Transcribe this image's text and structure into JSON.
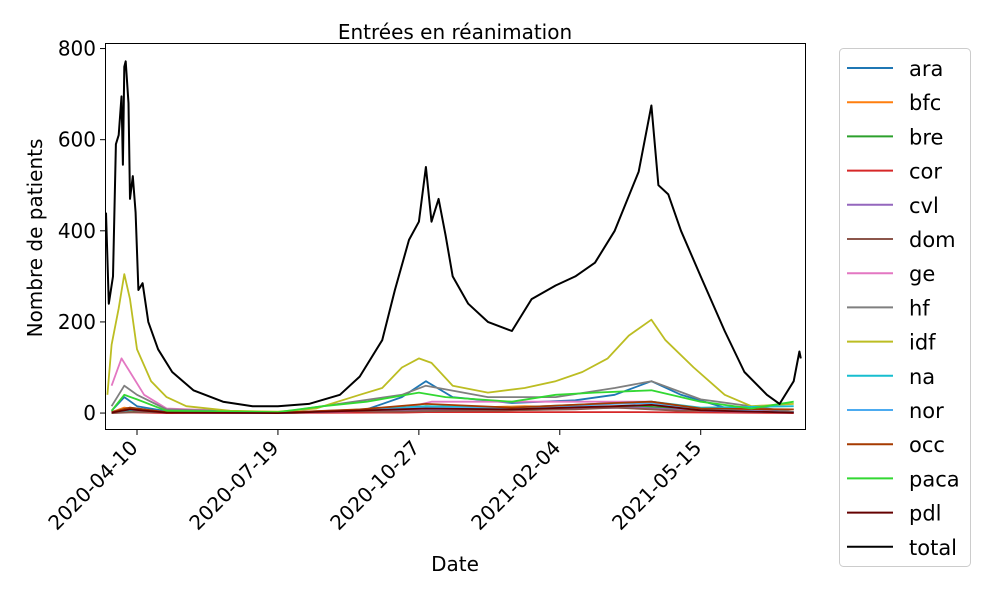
{
  "chart_data": {
    "type": "line",
    "title": "Entrées en réanimation",
    "xlabel": "Date",
    "ylabel": "Nombre de patients",
    "xlim": [
      "2020-03-19",
      "2021-07-28"
    ],
    "ylim": [
      -35,
      810
    ],
    "x_ticks": [
      "2020-04-10",
      "2020-07-19",
      "2020-10-27",
      "2021-02-04",
      "2021-05-15"
    ],
    "y_ticks": [
      0,
      200,
      400,
      600,
      800
    ],
    "grid": false,
    "legend_position": "outside-right",
    "series": [
      {
        "name": "ara",
        "color": "#1f77b4",
        "points": [
          [
            "2020-03-23",
            5
          ],
          [
            "2020-04-01",
            35
          ],
          [
            "2020-04-10",
            15
          ],
          [
            "2020-05-01",
            4
          ],
          [
            "2020-07-19",
            1
          ],
          [
            "2020-09-20",
            8
          ],
          [
            "2020-10-15",
            35
          ],
          [
            "2020-11-01",
            70
          ],
          [
            "2020-11-20",
            35
          ],
          [
            "2021-01-01",
            22
          ],
          [
            "2021-02-15",
            28
          ],
          [
            "2021-03-15",
            40
          ],
          [
            "2021-04-10",
            70
          ],
          [
            "2021-05-01",
            40
          ],
          [
            "2021-06-01",
            12
          ],
          [
            "2021-07-20",
            2
          ]
        ]
      },
      {
        "name": "bfc",
        "color": "#ff7f0e",
        "points": [
          [
            "2020-03-23",
            2
          ],
          [
            "2020-04-01",
            12
          ],
          [
            "2020-04-10",
            8
          ],
          [
            "2020-05-01",
            2
          ],
          [
            "2020-07-19",
            0
          ],
          [
            "2020-10-01",
            3
          ],
          [
            "2020-11-01",
            15
          ],
          [
            "2020-12-01",
            12
          ],
          [
            "2021-01-10",
            15
          ],
          [
            "2021-03-01",
            12
          ],
          [
            "2021-04-10",
            18
          ],
          [
            "2021-05-15",
            8
          ],
          [
            "2021-07-20",
            1
          ]
        ]
      },
      {
        "name": "bre",
        "color": "#2ca02c",
        "points": [
          [
            "2020-03-23",
            1
          ],
          [
            "2020-04-05",
            6
          ],
          [
            "2020-05-01",
            1
          ],
          [
            "2020-07-19",
            0
          ],
          [
            "2020-10-15",
            5
          ],
          [
            "2020-11-01",
            8
          ],
          [
            "2020-12-15",
            5
          ],
          [
            "2021-02-01",
            8
          ],
          [
            "2021-04-01",
            15
          ],
          [
            "2021-05-01",
            10
          ],
          [
            "2021-07-20",
            1
          ]
        ]
      },
      {
        "name": "cor",
        "color": "#d62728",
        "points": [
          [
            "2020-03-23",
            0
          ],
          [
            "2020-04-01",
            2
          ],
          [
            "2020-05-01",
            0
          ],
          [
            "2020-10-15",
            1
          ],
          [
            "2020-11-01",
            2
          ],
          [
            "2021-04-01",
            2
          ],
          [
            "2021-07-20",
            0
          ]
        ]
      },
      {
        "name": "cvl",
        "color": "#9467bd",
        "points": [
          [
            "2020-03-23",
            1
          ],
          [
            "2020-04-01",
            8
          ],
          [
            "2020-05-01",
            1
          ],
          [
            "2020-07-19",
            0
          ],
          [
            "2020-11-01",
            8
          ],
          [
            "2021-01-01",
            8
          ],
          [
            "2021-04-01",
            12
          ],
          [
            "2021-05-15",
            5
          ],
          [
            "2021-07-20",
            1
          ]
        ]
      },
      {
        "name": "dom",
        "color": "#8c564b",
        "points": [
          [
            "2020-03-23",
            0
          ],
          [
            "2020-04-10",
            2
          ],
          [
            "2020-07-19",
            1
          ],
          [
            "2020-09-01",
            5
          ],
          [
            "2020-10-01",
            3
          ],
          [
            "2021-02-15",
            8
          ],
          [
            "2021-03-15",
            12
          ],
          [
            "2021-05-01",
            5
          ],
          [
            "2021-07-20",
            8
          ]
        ]
      },
      {
        "name": "ge",
        "color": "#e377c2",
        "points": [
          [
            "2020-03-23",
            60
          ],
          [
            "2020-03-30",
            120
          ],
          [
            "2020-04-05",
            90
          ],
          [
            "2020-04-15",
            40
          ],
          [
            "2020-05-01",
            10
          ],
          [
            "2020-07-19",
            1
          ],
          [
            "2020-10-15",
            10
          ],
          [
            "2020-11-05",
            25
          ],
          [
            "2020-12-15",
            25
          ],
          [
            "2021-02-01",
            25
          ],
          [
            "2021-03-15",
            25
          ],
          [
            "2021-04-10",
            25
          ],
          [
            "2021-05-15",
            10
          ],
          [
            "2021-07-20",
            1
          ]
        ]
      },
      {
        "name": "hf",
        "color": "#7f7f7f",
        "points": [
          [
            "2020-03-23",
            15
          ],
          [
            "2020-04-01",
            60
          ],
          [
            "2020-04-10",
            40
          ],
          [
            "2020-05-01",
            8
          ],
          [
            "2020-07-19",
            1
          ],
          [
            "2020-10-15",
            40
          ],
          [
            "2020-11-01",
            60
          ],
          [
            "2020-12-15",
            35
          ],
          [
            "2021-02-01",
            35
          ],
          [
            "2021-03-15",
            55
          ],
          [
            "2021-04-10",
            70
          ],
          [
            "2021-05-15",
            30
          ],
          [
            "2021-07-20",
            2
          ]
        ]
      },
      {
        "name": "idf",
        "color": "#bcbd22",
        "points": [
          [
            "2020-03-20",
            40
          ],
          [
            "2020-03-23",
            150
          ],
          [
            "2020-03-28",
            230
          ],
          [
            "2020-04-01",
            305
          ],
          [
            "2020-04-05",
            250
          ],
          [
            "2020-04-10",
            140
          ],
          [
            "2020-04-20",
            70
          ],
          [
            "2020-05-01",
            35
          ],
          [
            "2020-05-15",
            15
          ],
          [
            "2020-06-15",
            5
          ],
          [
            "2020-07-19",
            3
          ],
          [
            "2020-08-15",
            10
          ],
          [
            "2020-09-15",
            40
          ],
          [
            "2020-10-01",
            55
          ],
          [
            "2020-10-15",
            100
          ],
          [
            "2020-10-27",
            120
          ],
          [
            "2020-11-05",
            110
          ],
          [
            "2020-11-20",
            60
          ],
          [
            "2020-12-15",
            45
          ],
          [
            "2021-01-10",
            55
          ],
          [
            "2021-02-01",
            70
          ],
          [
            "2021-02-20",
            90
          ],
          [
            "2021-03-10",
            120
          ],
          [
            "2021-03-25",
            170
          ],
          [
            "2021-04-10",
            205
          ],
          [
            "2021-04-20",
            160
          ],
          [
            "2021-05-10",
            100
          ],
          [
            "2021-06-01",
            40
          ],
          [
            "2021-06-20",
            15
          ],
          [
            "2021-07-20",
            20
          ]
        ]
      },
      {
        "name": "na",
        "color": "#17becf",
        "points": [
          [
            "2020-03-23",
            2
          ],
          [
            "2020-04-10",
            8
          ],
          [
            "2020-05-01",
            2
          ],
          [
            "2020-07-19",
            1
          ],
          [
            "2020-09-01",
            5
          ],
          [
            "2020-11-01",
            15
          ],
          [
            "2021-01-01",
            12
          ],
          [
            "2021-03-01",
            20
          ],
          [
            "2021-04-10",
            25
          ],
          [
            "2021-05-15",
            12
          ],
          [
            "2021-07-20",
            15
          ]
        ]
      },
      {
        "name": "nor",
        "color": "#4cabf0",
        "points": [
          [
            "2020-03-23",
            2
          ],
          [
            "2020-04-05",
            12
          ],
          [
            "2020-05-01",
            2
          ],
          [
            "2020-07-19",
            0
          ],
          [
            "2020-11-01",
            12
          ],
          [
            "2021-01-10",
            10
          ],
          [
            "2021-03-15",
            20
          ],
          [
            "2021-04-10",
            22
          ],
          [
            "2021-05-15",
            8
          ],
          [
            "2021-07-20",
            1
          ]
        ]
      },
      {
        "name": "occ",
        "color": "#a63a00",
        "points": [
          [
            "2020-03-23",
            2
          ],
          [
            "2020-04-05",
            12
          ],
          [
            "2020-05-01",
            2
          ],
          [
            "2020-07-19",
            1
          ],
          [
            "2020-09-15",
            8
          ],
          [
            "2020-11-01",
            20
          ],
          [
            "2021-01-01",
            12
          ],
          [
            "2021-03-15",
            22
          ],
          [
            "2021-04-10",
            25
          ],
          [
            "2021-05-15",
            10
          ],
          [
            "2021-07-20",
            8
          ]
        ]
      },
      {
        "name": "paca",
        "color": "#32d832",
        "points": [
          [
            "2020-03-23",
            5
          ],
          [
            "2020-04-01",
            40
          ],
          [
            "2020-04-10",
            30
          ],
          [
            "2020-05-01",
            5
          ],
          [
            "2020-07-19",
            2
          ],
          [
            "2020-08-20",
            15
          ],
          [
            "2020-09-20",
            25
          ],
          [
            "2020-10-27",
            45
          ],
          [
            "2020-11-15",
            35
          ],
          [
            "2021-01-01",
            25
          ],
          [
            "2021-02-01",
            40
          ],
          [
            "2021-03-01",
            45
          ],
          [
            "2021-04-10",
            50
          ],
          [
            "2021-05-15",
            25
          ],
          [
            "2021-06-20",
            10
          ],
          [
            "2021-07-20",
            25
          ]
        ]
      },
      {
        "name": "pdl",
        "color": "#650000",
        "points": [
          [
            "2020-03-23",
            1
          ],
          [
            "2020-04-05",
            8
          ],
          [
            "2020-05-01",
            1
          ],
          [
            "2020-07-19",
            0
          ],
          [
            "2020-11-01",
            10
          ],
          [
            "2021-01-01",
            8
          ],
          [
            "2021-03-15",
            15
          ],
          [
            "2021-04-10",
            18
          ],
          [
            "2021-05-15",
            6
          ],
          [
            "2021-07-20",
            1
          ]
        ]
      },
      {
        "name": "total",
        "color": "#000000",
        "points": [
          [
            "2020-03-19",
            440
          ],
          [
            "2020-03-21",
            240
          ],
          [
            "2020-03-24",
            300
          ],
          [
            "2020-03-26",
            590
          ],
          [
            "2020-03-28",
            610
          ],
          [
            "2020-03-30",
            695
          ],
          [
            "2020-03-31",
            545
          ],
          [
            "2020-04-01",
            760
          ],
          [
            "2020-04-02",
            772
          ],
          [
            "2020-04-04",
            680
          ],
          [
            "2020-04-05",
            470
          ],
          [
            "2020-04-07",
            520
          ],
          [
            "2020-04-09",
            440
          ],
          [
            "2020-04-11",
            270
          ],
          [
            "2020-04-14",
            285
          ],
          [
            "2020-04-18",
            200
          ],
          [
            "2020-04-25",
            140
          ],
          [
            "2020-05-05",
            90
          ],
          [
            "2020-05-20",
            50
          ],
          [
            "2020-06-10",
            25
          ],
          [
            "2020-07-01",
            15
          ],
          [
            "2020-07-19",
            15
          ],
          [
            "2020-08-10",
            20
          ],
          [
            "2020-09-01",
            40
          ],
          [
            "2020-09-15",
            80
          ],
          [
            "2020-10-01",
            160
          ],
          [
            "2020-10-10",
            270
          ],
          [
            "2020-10-20",
            380
          ],
          [
            "2020-10-27",
            420
          ],
          [
            "2020-11-01",
            540
          ],
          [
            "2020-11-05",
            420
          ],
          [
            "2020-11-10",
            470
          ],
          [
            "2020-11-15",
            390
          ],
          [
            "2020-11-20",
            300
          ],
          [
            "2020-12-01",
            240
          ],
          [
            "2020-12-15",
            200
          ],
          [
            "2021-01-01",
            180
          ],
          [
            "2021-01-15",
            250
          ],
          [
            "2021-02-01",
            280
          ],
          [
            "2021-02-15",
            300
          ],
          [
            "2021-03-01",
            330
          ],
          [
            "2021-03-15",
            400
          ],
          [
            "2021-04-01",
            530
          ],
          [
            "2021-04-10",
            675
          ],
          [
            "2021-04-15",
            500
          ],
          [
            "2021-04-22",
            480
          ],
          [
            "2021-05-01",
            400
          ],
          [
            "2021-05-15",
            300
          ],
          [
            "2021-06-01",
            180
          ],
          [
            "2021-06-15",
            90
          ],
          [
            "2021-07-01",
            40
          ],
          [
            "2021-07-10",
            20
          ],
          [
            "2021-07-20",
            70
          ],
          [
            "2021-07-24",
            135
          ],
          [
            "2021-07-25",
            120
          ]
        ]
      }
    ]
  }
}
